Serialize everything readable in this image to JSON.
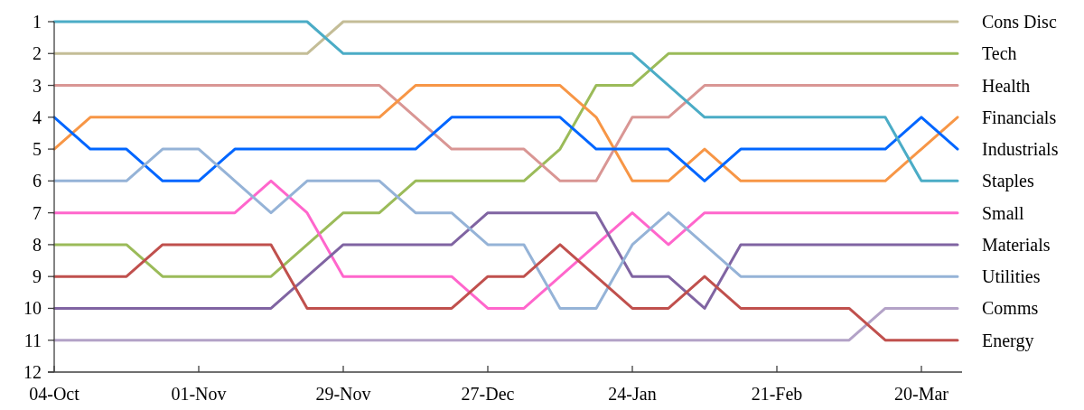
{
  "chart_data": {
    "type": "line",
    "categories": [
      "04-Oct",
      null,
      null,
      null,
      "01-Nov",
      null,
      null,
      null,
      "29-Nov",
      null,
      null,
      null,
      "27-Dec",
      null,
      null,
      null,
      "24-Jan",
      null,
      null,
      null,
      "21-Feb",
      null,
      null,
      null,
      "20-Mar",
      null
    ],
    "ylim": [
      12,
      1
    ],
    "yticks": [
      1,
      2,
      3,
      4,
      5,
      6,
      7,
      8,
      9,
      10,
      11,
      12
    ],
    "grid": false,
    "marker": "none",
    "line_style": "solid",
    "series": [
      {
        "name": "Cons Disc",
        "color": "#c4bd97",
        "values": [
          2,
          2,
          2,
          2,
          2,
          2,
          2,
          2,
          1,
          1,
          1,
          1,
          1,
          1,
          1,
          1,
          1,
          1,
          1,
          1,
          1,
          1,
          1,
          1,
          1,
          1
        ]
      },
      {
        "name": "Tech",
        "color": "#9bbb59",
        "values": [
          8,
          8,
          8,
          9,
          9,
          9,
          9,
          8,
          7,
          7,
          6,
          6,
          6,
          6,
          5,
          3,
          3,
          2,
          2,
          2,
          2,
          2,
          2,
          2,
          2,
          2
        ]
      },
      {
        "name": "Health",
        "color": "#d99694",
        "values": [
          3,
          3,
          3,
          3,
          3,
          3,
          3,
          3,
          3,
          3,
          4,
          5,
          5,
          5,
          6,
          6,
          4,
          4,
          3,
          3,
          3,
          3,
          3,
          3,
          3,
          3
        ]
      },
      {
        "name": "Financials",
        "color": "#f79646",
        "values": [
          5,
          4,
          4,
          4,
          4,
          4,
          4,
          4,
          4,
          4,
          3,
          3,
          3,
          3,
          3,
          4,
          6,
          6,
          5,
          6,
          6,
          6,
          6,
          6,
          5,
          4
        ]
      },
      {
        "name": "Industrials",
        "color": "#0066ff",
        "values": [
          4,
          5,
          5,
          6,
          6,
          5,
          5,
          5,
          5,
          5,
          5,
          4,
          4,
          4,
          4,
          5,
          5,
          5,
          6,
          5,
          5,
          5,
          5,
          5,
          4,
          5
        ]
      },
      {
        "name": "Staples",
        "color": "#4bacc6",
        "values": [
          1,
          1,
          1,
          1,
          1,
          1,
          1,
          1,
          2,
          2,
          2,
          2,
          2,
          2,
          2,
          2,
          2,
          3,
          4,
          4,
          4,
          4,
          4,
          4,
          6,
          6
        ]
      },
      {
        "name": "Small",
        "color": "#ff66cc",
        "values": [
          7,
          7,
          7,
          7,
          7,
          7,
          6,
          7,
          9,
          9,
          9,
          9,
          10,
          10,
          9,
          8,
          7,
          8,
          7,
          7,
          7,
          7,
          7,
          7,
          7,
          7
        ]
      },
      {
        "name": "Materials",
        "color": "#8064a2",
        "values": [
          10,
          10,
          10,
          10,
          10,
          10,
          10,
          9,
          8,
          8,
          8,
          8,
          7,
          7,
          7,
          7,
          9,
          9,
          10,
          8,
          8,
          8,
          8,
          8,
          8,
          8
        ]
      },
      {
        "name": "Utilities",
        "color": "#95b3d7",
        "values": [
          6,
          6,
          6,
          5,
          5,
          6,
          7,
          6,
          6,
          6,
          7,
          7,
          8,
          8,
          10,
          10,
          8,
          7,
          8,
          9,
          9,
          9,
          9,
          9,
          9,
          9
        ]
      },
      {
        "name": "Comms",
        "color": "#b3a2c7",
        "values": [
          11,
          11,
          11,
          11,
          11,
          11,
          11,
          11,
          11,
          11,
          11,
          11,
          11,
          11,
          11,
          11,
          11,
          11,
          11,
          11,
          11,
          11,
          11,
          10,
          10,
          10
        ]
      },
      {
        "name": "Energy",
        "color": "#c0504d",
        "values": [
          9,
          9,
          9,
          8,
          8,
          8,
          8,
          10,
          10,
          10,
          10,
          10,
          9,
          9,
          8,
          9,
          10,
          10,
          9,
          10,
          10,
          10,
          10,
          11,
          11,
          11
        ]
      }
    ]
  }
}
